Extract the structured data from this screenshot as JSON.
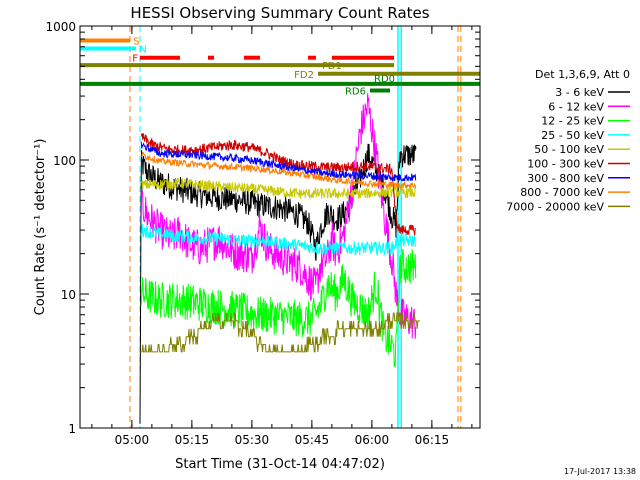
{
  "chart_data": {
    "type": "line",
    "title": "HESSI Observing Summary Count Rates",
    "xlabel": "Start Time (31-Oct-14 04:47:02)",
    "ylabel": "Count Rate (s⁻¹ detector⁻¹)",
    "xaxis_unit": "minutes after 04:47:02",
    "xlim": [
      0,
      100
    ],
    "ylim": [
      1,
      1000
    ],
    "yscale": "log",
    "x_ticks": [
      {
        "x": 12.97,
        "label": "05:00"
      },
      {
        "x": 27.97,
        "label": "05:15"
      },
      {
        "x": 42.97,
        "label": "05:30"
      },
      {
        "x": 57.97,
        "label": "05:45"
      },
      {
        "x": 72.97,
        "label": "06:00"
      },
      {
        "x": 87.97,
        "label": "06:15"
      }
    ],
    "y_ticks": [
      {
        "y": 1,
        "label": "1"
      },
      {
        "y": 10,
        "label": "10"
      },
      {
        "y": 100,
        "label": "100"
      },
      {
        "y": 1000,
        "label": "1000"
      }
    ],
    "legend": {
      "position": "right",
      "header": "Det 1,3,6,9, Att 0",
      "entries": [
        "3 - 6 keV",
        "6 - 12 keV",
        "12 - 25 keV",
        "25 - 50 keV",
        "50 - 100 keV",
        "100 - 300 keV",
        "300 - 800 keV",
        "800 - 7000 keV",
        "7000 - 20000 keV"
      ]
    },
    "timestamp": "17-Jul-2017 13:38",
    "flags": [
      {
        "label": "S",
        "color": "#ff7f00",
        "y": 780,
        "x_start": 0,
        "x_end": 12.5
      },
      {
        "label": "N",
        "color": "#00ffff",
        "y": 680,
        "x_start": 0,
        "x_end": 14
      },
      {
        "label": "F",
        "color": "#ff0000",
        "y": 580,
        "segments": [
          [
            15,
            25
          ],
          [
            32,
            33.5
          ],
          [
            41,
            45
          ],
          [
            57,
            59
          ],
          [
            63,
            78.5
          ]
        ]
      },
      {
        "label": "FD1",
        "color": "#808000",
        "y": 510,
        "x_start": 0,
        "x_end": 78.5
      },
      {
        "label": "FD2",
        "color": "#808000",
        "y": 440,
        "x_start": 59.5,
        "x_end": 100
      },
      {
        "label": "RD0",
        "color": "#008000",
        "y": 370,
        "x_start": 0,
        "x_end": 100
      },
      {
        "label": "RD6",
        "color": "#008000",
        "y": 330,
        "x_start": 72.5,
        "x_end": 77.5
      }
    ],
    "dashed_lines": [
      {
        "x": 12.5,
        "color": "#ff7f00"
      },
      {
        "x": 15,
        "color": "#00ffff"
      },
      {
        "x": 94.5,
        "color": "#ff7f00"
      },
      {
        "x": 95.2,
        "color": "#ff7f00"
      }
    ],
    "solid_lines": [
      {
        "x": 79.5,
        "color": "#00ffff"
      },
      {
        "x": 80.3,
        "color": "#00ffff"
      }
    ],
    "x_range_data": [
      15,
      85
    ],
    "series": [
      {
        "name": "3 - 6 keV",
        "color": "#000000",
        "noise": 0.1,
        "points": [
          [
            15,
            1
          ],
          [
            15.3,
            95
          ],
          [
            17,
            80
          ],
          [
            20,
            68
          ],
          [
            24,
            62
          ],
          [
            30,
            55
          ],
          [
            35,
            52
          ],
          [
            40,
            50
          ],
          [
            45,
            46
          ],
          [
            50,
            44
          ],
          [
            54,
            40
          ],
          [
            57,
            34
          ],
          [
            59,
            22
          ],
          [
            60,
            30
          ],
          [
            62,
            42
          ],
          [
            64,
            36
          ],
          [
            66,
            40
          ],
          [
            68,
            52
          ],
          [
            70,
            72
          ],
          [
            72,
            110
          ],
          [
            74,
            85
          ],
          [
            76,
            62
          ],
          [
            78,
            38
          ],
          [
            79,
            32
          ],
          [
            80,
            110
          ],
          [
            84,
            108
          ]
        ]
      },
      {
        "name": "6 - 12 keV",
        "color": "#ff00ff",
        "noise": 0.14,
        "points": [
          [
            15.3,
            48
          ],
          [
            17,
            38
          ],
          [
            20,
            30
          ],
          [
            23,
            26
          ],
          [
            25,
            29
          ],
          [
            27,
            24
          ],
          [
            30,
            22
          ],
          [
            33,
            24
          ],
          [
            35,
            26
          ],
          [
            37,
            22
          ],
          [
            40,
            20
          ],
          [
            43,
            19
          ],
          [
            45,
            32
          ],
          [
            47,
            22
          ],
          [
            50,
            19
          ],
          [
            53,
            17
          ],
          [
            55,
            16
          ],
          [
            57,
            13
          ],
          [
            59,
            11
          ],
          [
            60,
            16
          ],
          [
            62,
            19
          ],
          [
            63,
            26
          ],
          [
            64,
            20
          ],
          [
            66,
            28
          ],
          [
            68,
            60
          ],
          [
            70,
            160
          ],
          [
            72,
            260
          ],
          [
            74,
            110
          ],
          [
            76,
            40
          ],
          [
            78,
            18
          ],
          [
            79,
            10
          ],
          [
            80,
            7
          ],
          [
            84,
            6
          ]
        ]
      },
      {
        "name": "12 - 25 keV",
        "color": "#00ff00",
        "noise": 0.14,
        "points": [
          [
            15.3,
            10
          ],
          [
            20,
            9
          ],
          [
            25,
            9
          ],
          [
            30,
            8.5
          ],
          [
            35,
            8
          ],
          [
            40,
            7.5
          ],
          [
            45,
            7
          ],
          [
            50,
            6.8
          ],
          [
            55,
            6.5
          ],
          [
            58,
            6.5
          ],
          [
            60,
            8
          ],
          [
            62,
            12
          ],
          [
            64,
            10
          ],
          [
            66,
            13
          ],
          [
            68,
            9
          ],
          [
            70,
            8
          ],
          [
            72,
            7
          ],
          [
            74,
            12
          ],
          [
            76,
            5
          ],
          [
            78,
            4
          ],
          [
            79,
            3.5
          ],
          [
            80,
            16
          ],
          [
            82,
            16
          ],
          [
            84,
            16
          ]
        ]
      },
      {
        "name": "25 - 50 keV",
        "color": "#00ffff",
        "noise": 0.05,
        "points": [
          [
            15.3,
            30
          ],
          [
            20,
            28
          ],
          [
            25,
            27
          ],
          [
            30,
            26
          ],
          [
            35,
            26
          ],
          [
            40,
            25
          ],
          [
            45,
            25
          ],
          [
            50,
            24
          ],
          [
            55,
            23
          ],
          [
            60,
            22
          ],
          [
            65,
            22
          ],
          [
            70,
            22
          ],
          [
            75,
            22
          ],
          [
            78,
            22
          ],
          [
            79.5,
            25
          ],
          [
            80,
            25
          ],
          [
            84,
            25
          ]
        ]
      },
      {
        "name": "50 - 100 keV",
        "color": "#c8c800",
        "noise": 0.04,
        "points": [
          [
            15.3,
            65
          ],
          [
            20,
            66
          ],
          [
            25,
            67
          ],
          [
            30,
            65
          ],
          [
            35,
            63
          ],
          [
            40,
            62
          ],
          [
            45,
            60
          ],
          [
            50,
            58
          ],
          [
            55,
            56
          ],
          [
            60,
            56
          ],
          [
            65,
            56
          ],
          [
            70,
            56
          ],
          [
            75,
            57
          ],
          [
            78,
            58
          ],
          [
            80,
            57
          ],
          [
            84,
            57
          ]
        ]
      },
      {
        "name": "100 - 300 keV",
        "color": "#cc0000",
        "noise": 0.04,
        "points": [
          [
            15.3,
            150
          ],
          [
            18,
            130
          ],
          [
            22,
            120
          ],
          [
            26,
            118
          ],
          [
            30,
            120
          ],
          [
            34,
            125
          ],
          [
            38,
            130
          ],
          [
            42,
            125
          ],
          [
            46,
            115
          ],
          [
            50,
            100
          ],
          [
            54,
            92
          ],
          [
            58,
            90
          ],
          [
            62,
            88
          ],
          [
            66,
            88
          ],
          [
            70,
            90
          ],
          [
            74,
            88
          ],
          [
            78,
            85
          ],
          [
            79,
            35
          ],
          [
            80,
            30
          ],
          [
            84,
            30
          ]
        ]
      },
      {
        "name": "300 - 800 keV",
        "color": "#0000ff",
        "noise": 0.03,
        "points": [
          [
            15.3,
            130
          ],
          [
            20,
            112
          ],
          [
            25,
            110
          ],
          [
            30,
            108
          ],
          [
            35,
            105
          ],
          [
            40,
            102
          ],
          [
            45,
            97
          ],
          [
            50,
            90
          ],
          [
            55,
            85
          ],
          [
            60,
            80
          ],
          [
            65,
            78
          ],
          [
            70,
            77
          ],
          [
            75,
            75
          ],
          [
            80,
            74
          ],
          [
            84,
            74
          ]
        ]
      },
      {
        "name": "800 - 7000 keV",
        "color": "#ff7f00",
        "noise": 0.025,
        "points": [
          [
            15.3,
            110
          ],
          [
            20,
            98
          ],
          [
            25,
            95
          ],
          [
            30,
            92
          ],
          [
            35,
            90
          ],
          [
            40,
            88
          ],
          [
            45,
            86
          ],
          [
            50,
            82
          ],
          [
            55,
            78
          ],
          [
            60,
            74
          ],
          [
            65,
            70
          ],
          [
            70,
            68
          ],
          [
            75,
            66
          ],
          [
            80,
            65
          ],
          [
            84,
            65
          ]
        ]
      },
      {
        "name": "7000 - 20000 keV",
        "color": "#808000",
        "step": true,
        "points": [
          [
            15.3,
            3.7
          ],
          [
            20,
            3.7
          ],
          [
            25,
            4.2
          ],
          [
            28,
            4.8
          ],
          [
            31,
            5.5
          ],
          [
            34,
            6.3
          ],
          [
            38,
            6.3
          ],
          [
            41,
            5.5
          ],
          [
            43,
            4.8
          ],
          [
            45,
            4.2
          ],
          [
            48,
            3.7
          ],
          [
            55,
            3.7
          ],
          [
            58,
            4.2
          ],
          [
            62,
            4.8
          ],
          [
            66,
            5.5
          ],
          [
            70,
            5.8
          ],
          [
            74,
            5.5
          ],
          [
            78,
            6.3
          ],
          [
            80,
            6.3
          ],
          [
            84,
            6.3
          ]
        ]
      }
    ]
  }
}
